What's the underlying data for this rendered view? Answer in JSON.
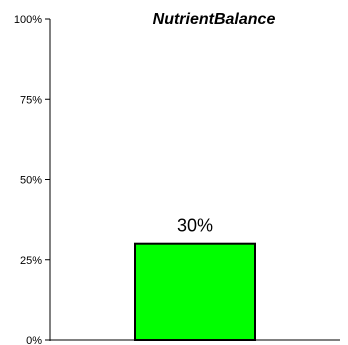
{
  "chart_data": {
    "type": "bar",
    "title": "NutrientBalance",
    "categories": [
      ""
    ],
    "values": [
      30
    ],
    "value_format": "percent",
    "data_labels": [
      "30%"
    ],
    "ylim": [
      0,
      100
    ],
    "yticks": [
      0,
      25,
      50,
      75,
      100
    ],
    "ytick_labels": [
      "0%",
      "25%",
      "50%",
      "75%",
      "100%"
    ],
    "xlabel": "",
    "ylabel": "",
    "grid": false,
    "legend": "none",
    "bar_color": "#00ff00",
    "bar_edge_color": "#000000"
  }
}
